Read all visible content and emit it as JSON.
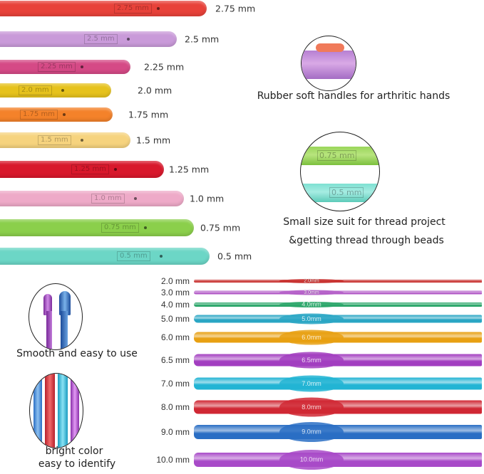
{
  "rubber_hooks": [
    {
      "size": "2.75 mm",
      "mark": "2.75 mm",
      "color": "#e8423a"
    },
    {
      "size": "2.5 mm",
      "mark": "2.5 mm",
      "color": "#c99ad9"
    },
    {
      "size": "2.25 mm",
      "mark": "2.25 mm",
      "color": "#d54a86"
    },
    {
      "size": "2.0 mm",
      "mark": "2.0 mm",
      "color": "#e6c21c"
    },
    {
      "size": "1.75 mm",
      "mark": "1.75 mm",
      "color": "#f4822a"
    },
    {
      "size": "1.5 mm",
      "mark": "1.5 mm",
      "color": "#f6d37e"
    },
    {
      "size": "1.25 mm",
      "mark": "1.25 mm",
      "color": "#d8182c"
    },
    {
      "size": "1.0 mm",
      "mark": "1.0 mm",
      "color": "#eeaac8"
    },
    {
      "size": "0.75 mm",
      "mark": "0.75 mm",
      "color": "#8bcf4b"
    },
    {
      "size": "0.5 mm",
      "mark": "0.5 mm",
      "color": "#6cd6c6"
    }
  ],
  "features": {
    "rubber": "Rubber soft handles for arthritic hands",
    "small_line1": "Small size suit for thread project",
    "small_line2": "&getting thread through beads",
    "small_marks": [
      "0.75 mm",
      "0.5 mm"
    ],
    "smooth": "Smooth and easy to use",
    "bright_line1": "bright color",
    "bright_line2": "easy to identify"
  },
  "metal_hooks": [
    {
      "size": "2.0 mm",
      "mark": "2.0mm",
      "color": "#c8302e"
    },
    {
      "size": "3.0 mm",
      "mark": "3.0mm",
      "color": "#b45ec8"
    },
    {
      "size": "4.0 mm",
      "mark": "4.0mm",
      "color": "#2ca66a"
    },
    {
      "size": "5.0 mm",
      "mark": "5.0mm",
      "color": "#2aa6c4"
    },
    {
      "size": "6.0 mm",
      "mark": "6.0mm",
      "color": "#e8a012"
    },
    {
      "size": "6.5 mm",
      "mark": "6.5mm",
      "color": "#a23ec0"
    },
    {
      "size": "7.0 mm",
      "mark": "7.0mm",
      "color": "#22b4d4"
    },
    {
      "size": "8.0 mm",
      "mark": "8.0mm",
      "color": "#d02834"
    },
    {
      "size": "9.0 mm",
      "mark": "9.0mm",
      "color": "#2a6ec4"
    },
    {
      "size": "10.0 mm",
      "mark": "10.0mm",
      "color": "#a84ac8"
    }
  ]
}
